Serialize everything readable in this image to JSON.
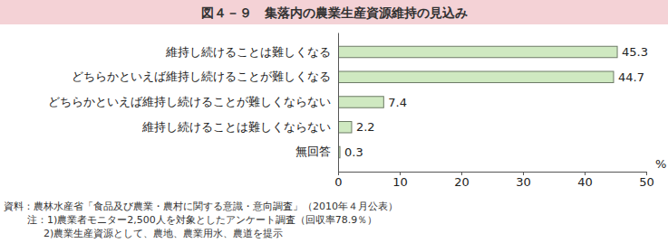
{
  "chart_data": {
    "type": "bar",
    "orientation": "horizontal",
    "title": "図４－９　集落内の農業生産資源維持の見込み",
    "categories": [
      "維持し続けることは難しくなる",
      "どちらかといえば維持し続けることが難しくなる",
      "どちらかといえば維持し続けることが難しくならない",
      "維持し続けることは難しくならない",
      "無回答"
    ],
    "values": [
      45.3,
      44.7,
      7.4,
      2.2,
      0.3
    ],
    "color": "#cfe9c1",
    "xlim": [
      0,
      50
    ],
    "xticks": [
      0,
      10,
      20,
      30,
      40,
      50
    ],
    "xlabel": "%",
    "data_labels": true,
    "grid": false,
    "annotations": [
      "資料：農林水産省「食品及び農業・農村に関する意識・意向調査」（2010年４月公表）",
      "注：1)農業者モニター2,500人を対象としたアンケート調査（回収率78.9％）",
      "2)農業生産資源として、農地、農業用水、農道を提示"
    ]
  }
}
